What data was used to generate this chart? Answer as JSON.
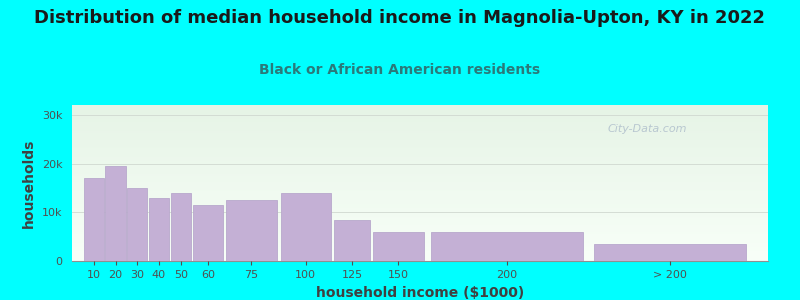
{
  "title": "Distribution of median household income in Magnolia-Upton, KY in 2022",
  "subtitle": "Black or African American residents",
  "xlabel": "household income ($1000)",
  "ylabel": "households",
  "background_outer": "#00FFFF",
  "background_inner_top": "#e6f4e6",
  "background_inner_bottom": "#f8fff8",
  "bar_color": "#c4b0d5",
  "bar_edge_color": "#b8a8cc",
  "categories": [
    "10",
    "20",
    "30",
    "40",
    "50",
    "60",
    "75",
    "100",
    "125",
    "150",
    "200",
    "> 200"
  ],
  "values": [
    17000,
    19500,
    15000,
    13000,
    14000,
    11500,
    12500,
    14000,
    8500,
    6000,
    6000,
    3500
  ],
  "yticks": [
    0,
    10000,
    20000,
    30000
  ],
  "ytick_labels": [
    "0",
    "10k",
    "20k",
    "30k"
  ],
  "ylim": [
    0,
    32000
  ],
  "title_fontsize": 13,
  "subtitle_fontsize": 10,
  "axis_label_fontsize": 10,
  "tick_fontsize": 8,
  "title_color": "#1a1a1a",
  "subtitle_color": "#2a7a7a",
  "axis_label_color": "#404040",
  "tick_color": "#505050",
  "watermark_text": "City-Data.com",
  "bar_lefts": [
    5,
    15,
    25,
    35,
    45,
    55,
    70,
    95,
    120,
    137.5,
    162.5,
    237.5
  ],
  "bar_widths": [
    10,
    10,
    10,
    10,
    10,
    15,
    25,
    25,
    17.5,
    25,
    75,
    75
  ],
  "xlim": [
    0,
    320
  ]
}
